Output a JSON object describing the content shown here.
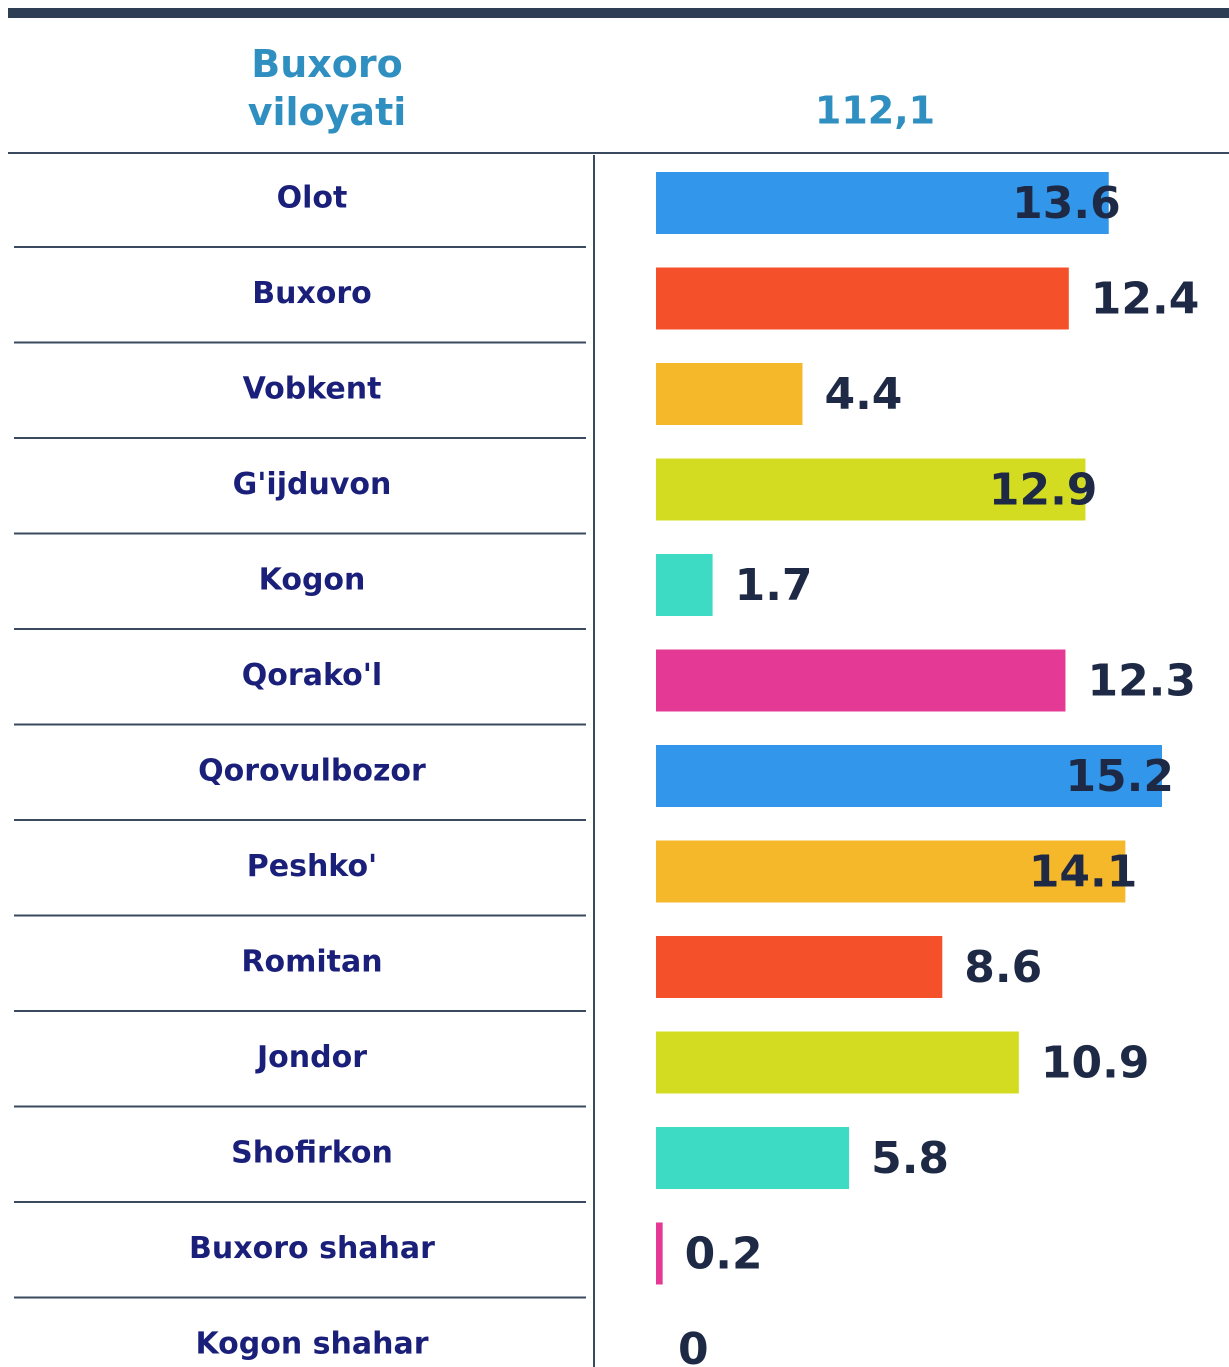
{
  "chart_data": {
    "type": "bar",
    "orientation": "horizontal",
    "title": "Buxoro viloyati",
    "total": "112,1",
    "categories": [
      "Olot",
      "Buxoro",
      "Vobkent",
      "G'ijduvon",
      "Kogon",
      "Qorako'l",
      "Qorovulbozor",
      "Peshko'",
      "Romitan",
      "Jondor",
      "Shofirkon",
      "Buxoro shahar",
      "Kogon shahar"
    ],
    "values": [
      13.6,
      12.4,
      4.4,
      12.9,
      1.7,
      12.3,
      15.2,
      14.1,
      8.6,
      10.9,
      5.8,
      0.2,
      0
    ],
    "colors": [
      "#3296eb",
      "#f4502a",
      "#f5b82a",
      "#d4dc22",
      "#3ddbc3",
      "#e43a96",
      "#3296eb",
      "#f5b82a",
      "#f4502a",
      "#d4dc22",
      "#3ddbc3",
      "#e43a96",
      "#3296eb"
    ]
  }
}
